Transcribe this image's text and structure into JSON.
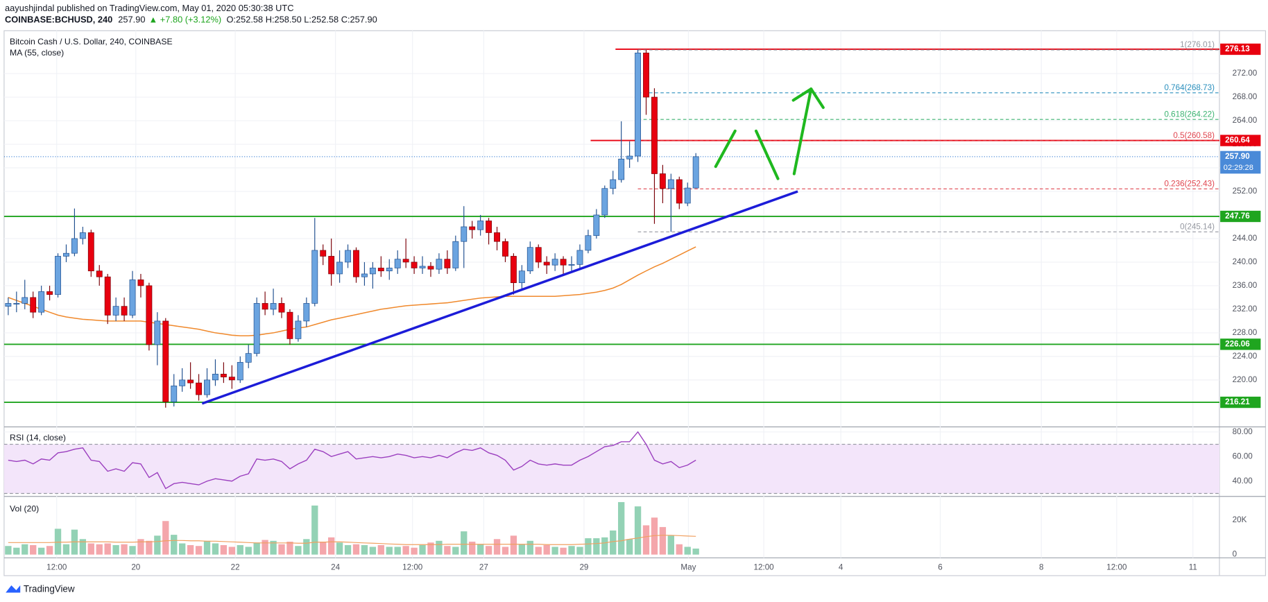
{
  "header": {
    "line1": "aayushjindal published on TradingView.com, May 01, 2020 05:30:38 UTC",
    "symbol": "COINBASE:BCHUSD, 240",
    "last": "257.90",
    "change": "▲ +7.80 (+3.12%)",
    "ohlc": "O:252.58 H:258.50 L:252.58 C:257.90"
  },
  "footer": "TradingView",
  "chart_data": {
    "type": "candlestick",
    "title": "Bitcoin Cash / U.S. Dollar, 240, COINBASE",
    "up_color": "#6ba4e0",
    "down_color": "#e8000f",
    "xlim": [
      -0.5,
      146.2
    ],
    "xticks": [
      {
        "value": 5.85,
        "label": "12:00"
      },
      {
        "value": 15.4,
        "label": "20"
      },
      {
        "value": 27.4,
        "label": "22"
      },
      {
        "value": 39.5,
        "label": "24"
      },
      {
        "value": 48.8,
        "label": "12:00"
      },
      {
        "value": 57.4,
        "label": "27"
      },
      {
        "value": 69.5,
        "label": "29"
      },
      {
        "value": 82.1,
        "label": "May"
      },
      {
        "value": 91.2,
        "label": "12:00"
      },
      {
        "value": 100.5,
        "label": "4"
      },
      {
        "value": 112.5,
        "label": "6"
      },
      {
        "value": 124.7,
        "label": "8"
      },
      {
        "value": 133.8,
        "label": "12:00"
      },
      {
        "value": 143.0,
        "label": "11"
      }
    ],
    "ylim": [
      212.04,
      279.27
    ],
    "yticks": [
      {
        "value": 220,
        "label": "220.00"
      },
      {
        "value": 224,
        "label": "224.00"
      },
      {
        "value": 228,
        "label": "228.00"
      },
      {
        "value": 232,
        "label": "232.00"
      },
      {
        "value": 236,
        "label": "236.00"
      },
      {
        "value": 240,
        "label": "240.00"
      },
      {
        "value": 244,
        "label": "244.00"
      },
      {
        "value": 248,
        "label": "248.00"
      },
      {
        "value": 252,
        "label": "252.00"
      },
      {
        "value": 256,
        "label": "256.00"
      },
      {
        "value": 260,
        "label": "260.00"
      },
      {
        "value": 264,
        "label": "264.00"
      },
      {
        "value": 268,
        "label": "268.00"
      },
      {
        "value": 272,
        "label": "272.00"
      }
    ],
    "grid": true,
    "candles": {
      "open": [
        232.5,
        233,
        233,
        234,
        231.5,
        235,
        234.5,
        241,
        241.5,
        244,
        245,
        238.5,
        237.5,
        231,
        232.5,
        231,
        237,
        236,
        226,
        230,
        216.3,
        219,
        220,
        219.5,
        217.5,
        220,
        221,
        220.5,
        220,
        223,
        224.5,
        233,
        232,
        233,
        231.5,
        227,
        230,
        233,
        242,
        241,
        238,
        240,
        242,
        237.5,
        238,
        239,
        238.5,
        239,
        240.5,
        240,
        239,
        239.3,
        238.8,
        240.5,
        239,
        243.5,
        246,
        245.5,
        247,
        245,
        243.5,
        241,
        236.5,
        238.5,
        242.5,
        240,
        239.5,
        240.5,
        239.5,
        239.6,
        242,
        244.5,
        248,
        252.5,
        254,
        257.5,
        258,
        275.5,
        268,
        255,
        252.5,
        254,
        250,
        252.58
      ],
      "high": [
        234,
        235,
        237,
        235,
        236,
        236,
        241.5,
        243,
        249.1,
        246,
        245.5,
        239.5,
        238,
        234,
        234,
        238.5,
        238,
        236.5,
        231.5,
        230.5,
        221,
        222,
        223,
        221,
        222,
        223.5,
        223,
        222.5,
        224,
        226,
        234,
        235,
        235.5,
        234,
        232,
        231,
        234,
        247.5,
        243,
        244,
        242,
        243,
        242.5,
        240,
        240,
        241,
        240.5,
        242,
        244,
        241,
        241,
        240,
        241.5,
        242,
        244.5,
        249.5,
        247,
        248,
        247.5,
        246,
        244,
        241.5,
        239.5,
        243.5,
        243,
        241,
        241.5,
        241,
        241,
        243,
        245.5,
        249,
        253,
        255.5,
        263.9,
        260.5,
        276.01,
        276,
        269.5,
        256.5,
        255,
        254.5,
        253.5,
        258.5
      ],
      "low": [
        231,
        231.5,
        232,
        230.5,
        231,
        233.5,
        234,
        240,
        241,
        243,
        237.5,
        236,
        229.5,
        230,
        230,
        230.5,
        234,
        225,
        222.5,
        215.3,
        215.5,
        218,
        218.5,
        216.5,
        217,
        219,
        219.5,
        218.5,
        219.5,
        222,
        224,
        231,
        231,
        230.5,
        226,
        226.5,
        229,
        232.5,
        239.5,
        236,
        236.5,
        239,
        236.5,
        236,
        235.5,
        237.5,
        237,
        238,
        239,
        238,
        238,
        237.5,
        238,
        238,
        238.5,
        239,
        244,
        244.5,
        243,
        242,
        240,
        234.5,
        235.5,
        238,
        239,
        238,
        238.5,
        238,
        238.5,
        239,
        241.5,
        244,
        247.5,
        251.5,
        253.5,
        256,
        257,
        265,
        246.5,
        250,
        245.14,
        249,
        249.5,
        252.58
      ],
      "close": [
        233,
        233,
        234,
        231.5,
        235,
        234.5,
        241,
        241.5,
        244,
        245,
        238.5,
        237.5,
        231,
        232.5,
        231,
        237,
        236,
        226,
        230,
        216.3,
        219,
        220,
        219.5,
        217.5,
        220,
        221,
        220.5,
        220,
        223,
        224.5,
        233,
        232,
        233,
        231.5,
        227,
        230,
        233,
        242,
        241,
        238,
        240,
        242,
        237.5,
        238,
        239,
        238.5,
        239,
        240.5,
        240,
        239,
        239.3,
        238.8,
        240.5,
        239,
        243.5,
        246,
        245.5,
        247,
        245,
        243.5,
        241,
        236.5,
        238.5,
        242.5,
        240,
        239.5,
        240.5,
        239.5,
        239.6,
        242,
        244.5,
        248,
        252.5,
        254,
        257.5,
        258,
        275.5,
        268,
        255,
        252.5,
        254,
        250,
        252.58,
        257.9
      ]
    },
    "series": [
      {
        "name": "MA (55, close)",
        "color": "#f0892c",
        "values": [
          234,
          233.5,
          233,
          232.5,
          232,
          231.5,
          231,
          230.7,
          230.5,
          230.3,
          230.2,
          230.1,
          230,
          230,
          230,
          230,
          230,
          229.8,
          229.6,
          229.4,
          229.2,
          229,
          228.8,
          228.6,
          228.3,
          228,
          227.8,
          227.6,
          227.5,
          227.5,
          227.6,
          227.8,
          228,
          228.3,
          228.6,
          228.8,
          229,
          229.4,
          229.8,
          230.2,
          230.5,
          230.8,
          231.1,
          231.4,
          231.7,
          232,
          232.2,
          232.4,
          232.6,
          232.7,
          232.8,
          232.9,
          233,
          233.1,
          233.3,
          233.5,
          233.7,
          233.9,
          234,
          234.1,
          234.2,
          234.2,
          234.2,
          234.2,
          234.2,
          234.2,
          234.2,
          234.3,
          234.4,
          234.5,
          234.7,
          234.9,
          235.2,
          235.6,
          236.2,
          237,
          237.8,
          238.5,
          239.2,
          239.8,
          240.5,
          241.2,
          241.9,
          242.6
        ]
      }
    ],
    "levels": [
      {
        "value": 276.13,
        "color": "#e8000f",
        "start": 73.3
      },
      {
        "value": 260.64,
        "color": "#e8000f",
        "start": 70.3
      },
      {
        "value": 247.76,
        "color": "#1fa51f",
        "start": -0.5
      },
      {
        "value": 226.06,
        "color": "#1fa51f",
        "start": -0.5
      },
      {
        "value": 216.21,
        "color": "#1fa51f",
        "start": -0.5
      }
    ],
    "last_price": {
      "value": 257.9,
      "label": "257.90",
      "color": "#4a8ad8"
    },
    "countdown": "02:29:28",
    "fib": [
      {
        "label": "1(276.01)",
        "value": 276.01,
        "color": "#9598a1"
      },
      {
        "label": "0.764(268.73)",
        "value": 268.73,
        "color": "#2a8fbd"
      },
      {
        "label": "0.618(264.22)",
        "value": 264.22,
        "color": "#3cb371"
      },
      {
        "label": "0.5(260.58)",
        "value": 260.58,
        "color": "#e0454f"
      },
      {
        "label": "0.236(252.43)",
        "value": 252.43,
        "color": "#e0454f"
      },
      {
        "label": "0(245.14)",
        "value": 245.14,
        "color": "#9598a1"
      }
    ],
    "fib_start": 76,
    "trendline": {
      "color": "#1c1cd8",
      "start": [
        23.4,
        216
      ],
      "end": [
        95.3,
        252
      ]
    },
    "rsi": {
      "title": "RSI (14, close)",
      "color": "#9b3fbf",
      "band": [
        30,
        70
      ],
      "ylim": [
        27.6,
        84.1
      ],
      "yticks": [
        {
          "value": 40,
          "label": "40.00"
        },
        {
          "value": 60,
          "label": "60.00"
        },
        {
          "value": 80,
          "label": "80.00"
        }
      ],
      "values": [
        57,
        56,
        57,
        54,
        58,
        57,
        63,
        64,
        66,
        67,
        57,
        56,
        48,
        50,
        48,
        55,
        54,
        43,
        47,
        34,
        38,
        39,
        38,
        37,
        40,
        42,
        41,
        40,
        44,
        46,
        58,
        57,
        58,
        56,
        50,
        54,
        57,
        66,
        64,
        60,
        62,
        64,
        58,
        59,
        60,
        59,
        60,
        62,
        61,
        59,
        60,
        59,
        61,
        59,
        63,
        66,
        65,
        67,
        63,
        61,
        57,
        49,
        52,
        57,
        54,
        53,
        54,
        53,
        53,
        57,
        60,
        64,
        68,
        69,
        72,
        72,
        80,
        70,
        57,
        54,
        56,
        51,
        53,
        57
      ]
    },
    "volume": {
      "title": "Vol (20)",
      "up_color": "#93d2b5",
      "down_color": "#f4a6ab",
      "ma_color": "#f0a060",
      "ylim": [
        -1900,
        33800
      ],
      "yticks": [
        0,
        {
          "value": 20000,
          "label": "20K"
        }
      ],
      "values": [
        5000,
        4000,
        6000,
        5500,
        4000,
        5000,
        15000,
        6000,
        14500,
        9000,
        6500,
        6000,
        6500,
        5500,
        6000,
        5000,
        9000,
        8000,
        11000,
        19500,
        11500,
        6500,
        5500,
        5000,
        8000,
        6500,
        5500,
        4500,
        5500,
        4500,
        7000,
        8500,
        8000,
        6000,
        7500,
        5000,
        9000,
        28500,
        7500,
        10000,
        7000,
        5500,
        6000,
        5500,
        4500,
        5500,
        4500,
        4500,
        5000,
        4000,
        5500,
        7000,
        8000,
        5000,
        4500,
        13500,
        7500,
        6000,
        5000,
        9000,
        4500,
        11000,
        6000,
        8000,
        4500,
        5500,
        4500,
        4000,
        5000,
        4500,
        9500,
        9500,
        10000,
        14000,
        30500,
        9000,
        28000,
        17000,
        21500,
        16000,
        11000,
        6000,
        4500,
        3500
      ],
      "ma": [
        7000,
        7000,
        7000,
        7000,
        7000,
        7000,
        7200,
        7200,
        7400,
        7400,
        7400,
        7400,
        7400,
        7200,
        7200,
        7200,
        7400,
        7400,
        7600,
        8000,
        8200,
        8200,
        8000,
        8000,
        7800,
        7800,
        7600,
        7400,
        7200,
        7000,
        6800,
        6800,
        6800,
        6800,
        6800,
        6600,
        6600,
        7200,
        7200,
        7400,
        7400,
        7200,
        7000,
        6800,
        6600,
        6400,
        6200,
        6000,
        5800,
        5800,
        5800,
        5800,
        5800,
        6000,
        6000,
        6000,
        6000,
        6000,
        6000,
        6000,
        6000,
        6000,
        6000,
        6000,
        6000,
        5800,
        5800,
        5800,
        5800,
        6000,
        6200,
        6400,
        6800,
        7600,
        8000,
        9000,
        9600,
        10400,
        11000,
        11200,
        11200,
        11000,
        10800,
        10600
      ]
    }
  }
}
